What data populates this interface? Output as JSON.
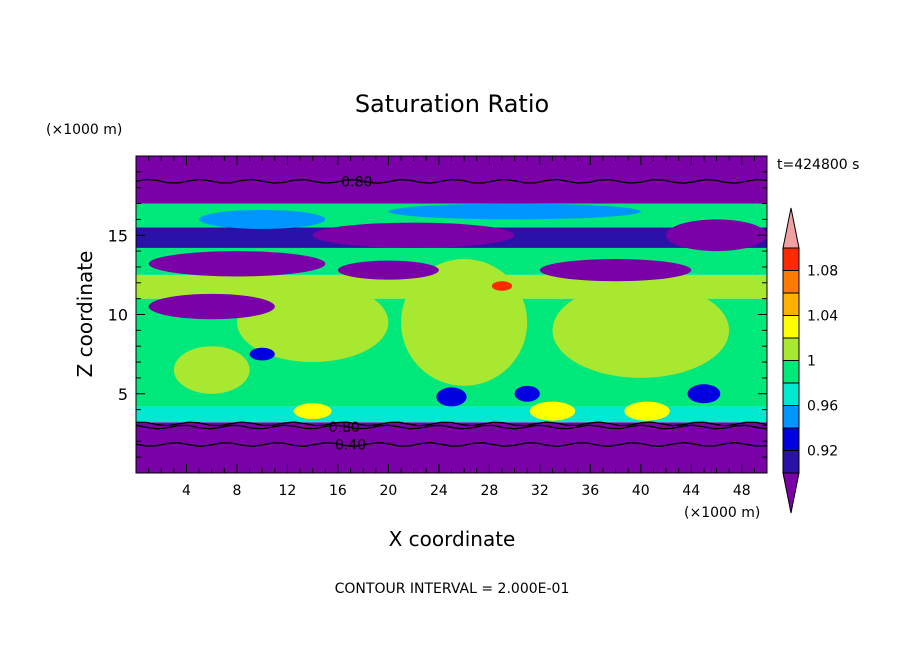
{
  "chart_data": {
    "type": "heatmap",
    "title": "Saturation Ratio",
    "xlabel": "X coordinate",
    "ylabel": "Z coordinate",
    "x_unit": "(×1000 m)",
    "y_unit": "(×1000 m)",
    "time_label": "t=424800 s",
    "footer": "CONTOUR INTERVAL = 2.000E-01",
    "xlim": [
      0,
      50
    ],
    "ylim": [
      0,
      20
    ],
    "x_ticks": [
      4,
      8,
      12,
      16,
      20,
      24,
      28,
      32,
      36,
      40,
      44,
      48
    ],
    "y_ticks": [
      5,
      10,
      15
    ],
    "contour_labels": [
      {
        "text": "0.80",
        "x": 17.5,
        "y": 18.4
      },
      {
        "text": "0.80",
        "x": 16.5,
        "y": 2.9
      },
      {
        "text": "0.40",
        "x": 17.0,
        "y": 1.8
      }
    ],
    "colorbar": {
      "labels": [
        "1.08",
        "1.04",
        "1",
        "0.96",
        "0.92"
      ],
      "levels": [
        0.92,
        0.94,
        0.96,
        0.98,
        1.0,
        1.02,
        1.04,
        1.06,
        1.08,
        1.1
      ],
      "colors": [
        "#7a00a8",
        "#2a12a8",
        "#0000e0",
        "#0096ff",
        "#00e8d0",
        "#00e87a",
        "#a8e830",
        "#ffff00",
        "#ffb000",
        "#ff7a00",
        "#ff2a00",
        "#f0a0a0"
      ]
    },
    "bands": [
      {
        "y0": 0,
        "y1": 3.2,
        "color": "#7a00a8"
      },
      {
        "y0": 3.2,
        "y1": 4.2,
        "color": "#00e8d0"
      },
      {
        "y0": 4.2,
        "y1": 11.0,
        "color": "#00e87a"
      },
      {
        "y0": 11.0,
        "y1": 12.5,
        "color": "#a8e830"
      },
      {
        "y0": 12.5,
        "y1": 14.2,
        "color": "#00e87a"
      },
      {
        "y0": 14.2,
        "y1": 15.5,
        "color": "#2a12a8"
      },
      {
        "y0": 15.5,
        "y1": 17.0,
        "color": "#00e87a"
      },
      {
        "y0": 17.0,
        "y1": 20,
        "color": "#7a00a8"
      }
    ],
    "patches": [
      {
        "x": 14,
        "y": 9.5,
        "rx": 6,
        "ry": 2.5,
        "color": "#a8e830"
      },
      {
        "x": 26,
        "y": 9.5,
        "rx": 5,
        "ry": 4,
        "color": "#a8e830"
      },
      {
        "x": 40,
        "y": 9.0,
        "rx": 7,
        "ry": 3,
        "color": "#a8e830"
      },
      {
        "x": 6,
        "y": 6.5,
        "rx": 3,
        "ry": 1.5,
        "color": "#a8e830"
      },
      {
        "x": 33,
        "y": 3.9,
        "rx": 1.8,
        "ry": 0.6,
        "color": "#ffff00"
      },
      {
        "x": 14,
        "y": 3.9,
        "rx": 1.5,
        "ry": 0.5,
        "color": "#ffff00"
      },
      {
        "x": 40.5,
        "y": 3.9,
        "rx": 1.8,
        "ry": 0.6,
        "color": "#ffff00"
      },
      {
        "x": 29,
        "y": 11.8,
        "rx": 0.8,
        "ry": 0.3,
        "color": "#ff2a00"
      },
      {
        "x": 8,
        "y": 13.2,
        "rx": 7,
        "ry": 0.8,
        "color": "#7a00a8"
      },
      {
        "x": 20,
        "y": 12.8,
        "rx": 4,
        "ry": 0.6,
        "color": "#7a00a8"
      },
      {
        "x": 38,
        "y": 12.8,
        "rx": 6,
        "ry": 0.7,
        "color": "#7a00a8"
      },
      {
        "x": 6,
        "y": 10.5,
        "rx": 5,
        "ry": 0.8,
        "color": "#7a00a8"
      },
      {
        "x": 22,
        "y": 15.0,
        "rx": 8,
        "ry": 0.8,
        "color": "#7a00a8"
      },
      {
        "x": 10,
        "y": 16.0,
        "rx": 5,
        "ry": 0.6,
        "color": "#0096ff"
      },
      {
        "x": 30,
        "y": 16.5,
        "rx": 10,
        "ry": 0.5,
        "color": "#0096ff"
      },
      {
        "x": 46,
        "y": 15.0,
        "rx": 4,
        "ry": 1.0,
        "color": "#7a00a8"
      },
      {
        "x": 10,
        "y": 7.5,
        "rx": 1,
        "ry": 0.4,
        "color": "#0000e0"
      },
      {
        "x": 25,
        "y": 4.8,
        "rx": 1.2,
        "ry": 0.6,
        "color": "#0000e0"
      },
      {
        "x": 31,
        "y": 5.0,
        "rx": 1.0,
        "ry": 0.5,
        "color": "#0000e0"
      },
      {
        "x": 45,
        "y": 5.0,
        "rx": 1.3,
        "ry": 0.6,
        "color": "#0000e0"
      }
    ],
    "contour_lines": [
      {
        "y": 18.4
      },
      {
        "y": 3.1
      },
      {
        "y": 2.9
      },
      {
        "y": 1.8
      }
    ]
  }
}
